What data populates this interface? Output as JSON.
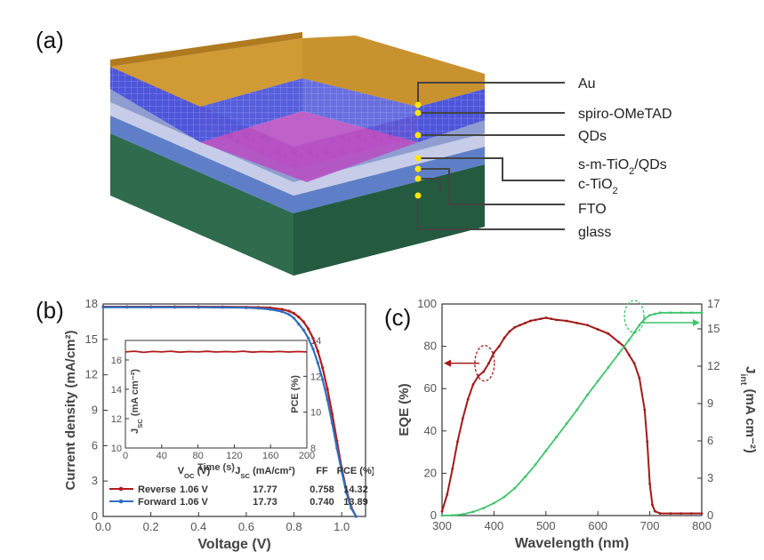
{
  "panel_a": {
    "label": "(a)",
    "layers": [
      "Au",
      "spiro-OMeTAD",
      "QDs",
      "s-m-TiO2/QDs",
      "c-TiO2",
      "FTO",
      "glass"
    ],
    "colors": {
      "au": "#c8922f",
      "spiro": "#4c5bd6",
      "qd": "#8a2e9c",
      "tio2": "#9ba8cf",
      "fto": "#5e7fc8",
      "glass": "#2f6b4d",
      "dot": "#ffe600"
    }
  },
  "panel_b": {
    "label": "(b)"
  },
  "panel_c": {
    "label": "(c)"
  },
  "chart_data": [
    {
      "id": "jv",
      "type": "line",
      "xlabel": "Voltage (V)",
      "ylabel": "Current density (mA/cm²)",
      "xlim": [
        0.0,
        1.1
      ],
      "ylim": [
        0,
        18
      ],
      "xticks": [
        0.0,
        0.2,
        0.4,
        0.6,
        0.8,
        1.0
      ],
      "xtick_labels": [
        "0.0",
        "0.2",
        "0.4",
        "0.6",
        "0.8",
        "1.0"
      ],
      "yticks": [
        0,
        3,
        6,
        9,
        12,
        15,
        18
      ],
      "series": [
        {
          "name": "Reverse",
          "color": "#b01c1c",
          "x": [
            0.0,
            0.1,
            0.2,
            0.3,
            0.4,
            0.5,
            0.6,
            0.65,
            0.7,
            0.75,
            0.78,
            0.8,
            0.82,
            0.84,
            0.86,
            0.88,
            0.9,
            0.92,
            0.94,
            0.96,
            0.98,
            1.0,
            1.02,
            1.04,
            1.06
          ],
          "y": [
            17.77,
            17.77,
            17.77,
            17.77,
            17.77,
            17.76,
            17.74,
            17.72,
            17.68,
            17.55,
            17.4,
            17.2,
            16.9,
            16.5,
            15.9,
            15.1,
            14.0,
            12.6,
            10.8,
            8.7,
            6.4,
            4.1,
            2.2,
            0.8,
            0
          ]
        },
        {
          "name": "Forward",
          "color": "#2e6fc0",
          "x": [
            0.0,
            0.1,
            0.2,
            0.3,
            0.4,
            0.5,
            0.6,
            0.65,
            0.7,
            0.75,
            0.78,
            0.8,
            0.82,
            0.84,
            0.86,
            0.88,
            0.9,
            0.92,
            0.94,
            0.96,
            0.98,
            1.0,
            1.02,
            1.04,
            1.06
          ],
          "y": [
            17.73,
            17.73,
            17.73,
            17.72,
            17.72,
            17.71,
            17.68,
            17.64,
            17.55,
            17.35,
            17.1,
            16.8,
            16.3,
            15.8,
            15.1,
            14.2,
            13.0,
            11.6,
            9.9,
            7.9,
            5.8,
            3.8,
            2.0,
            0.7,
            0
          ]
        }
      ],
      "table": {
        "headers": [
          "V",
          "J",
          "FF",
          "PCE (%)"
        ],
        "header_subs": [
          "OC",
          "SC"
        ],
        "header_units": [
          " (V)",
          " (mA/cm²)"
        ],
        "rows": [
          [
            "Reverse",
            "1.06 V",
            "17.77",
            "0.758",
            "14.32"
          ],
          [
            "Forward",
            "1.06 V",
            "17.73",
            "0.740",
            "13.89"
          ]
        ]
      }
    },
    {
      "id": "stability",
      "type": "line",
      "xlabel": "Time (s)",
      "ylabel_left": "J",
      "ylabel_left_sub": "SC",
      "ylabel_left_unit": " (mA cm⁻²)",
      "ylabel_right": "PCE (%)",
      "xlim": [
        0,
        200
      ],
      "ylim_left": [
        10,
        17.33
      ],
      "ylim_right": [
        8,
        14
      ],
      "xticks": [
        0,
        40,
        80,
        120,
        160,
        200
      ],
      "yticks_left": [
        10,
        12,
        14,
        16
      ],
      "yticks_right": [
        8,
        10,
        12,
        14
      ],
      "series": [
        {
          "name": "",
          "color": "#b01c1c",
          "x": [
            0,
            10,
            20,
            30,
            40,
            50,
            60,
            70,
            80,
            90,
            100,
            110,
            120,
            130,
            140,
            150,
            160,
            170,
            180,
            190,
            200
          ],
          "y": [
            16.55,
            16.6,
            16.52,
            16.58,
            16.55,
            16.6,
            16.53,
            16.57,
            16.55,
            16.59,
            16.54,
            16.57,
            16.55,
            16.6,
            16.53,
            16.57,
            16.55,
            16.58,
            16.54,
            16.57,
            16.55
          ]
        }
      ]
    },
    {
      "id": "eqe",
      "type": "line",
      "xlabel": "Wavelength (nm)",
      "ylabel_left": "EQE (%)",
      "ylabel_right": "J",
      "ylabel_right_sub": "int",
      "ylabel_right_unit": " (mA cm⁻²)",
      "xlim": [
        300,
        800
      ],
      "ylim_left": [
        0,
        100
      ],
      "ylim_right": [
        0,
        17
      ],
      "xticks": [
        300,
        400,
        500,
        600,
        700,
        800
      ],
      "yticks_left": [
        0,
        20,
        40,
        60,
        80,
        100
      ],
      "yticks_right": [
        0,
        3,
        6,
        9,
        12,
        15,
        17
      ],
      "series": [
        {
          "name": "EQE",
          "color": "#a11a1a",
          "x": [
            300,
            310,
            320,
            330,
            340,
            350,
            360,
            370,
            380,
            390,
            400,
            410,
            420,
            430,
            440,
            450,
            460,
            470,
            480,
            490,
            500,
            510,
            520,
            540,
            560,
            580,
            600,
            620,
            640,
            650,
            660,
            670,
            680,
            690,
            695,
            700,
            705,
            710,
            720,
            740,
            760,
            780,
            800
          ],
          "y": [
            2,
            10,
            22,
            35,
            46,
            55,
            62,
            66,
            68,
            72,
            77,
            80,
            84,
            87,
            89,
            90,
            91,
            92,
            92.5,
            93,
            93.5,
            93,
            92.5,
            92,
            91,
            90,
            88,
            86,
            82,
            80,
            76,
            72,
            65,
            50,
            35,
            15,
            5,
            2,
            1,
            1,
            1,
            1,
            1
          ]
        },
        {
          "name": "Jint",
          "color": "#3fc46a",
          "x": [
            300,
            320,
            340,
            360,
            380,
            400,
            420,
            440,
            460,
            480,
            500,
            520,
            540,
            560,
            580,
            600,
            620,
            640,
            660,
            670,
            680,
            690,
            700,
            710,
            720,
            740,
            760,
            780,
            800
          ],
          "y": [
            0,
            0.02,
            0.1,
            0.3,
            0.6,
            1.0,
            1.5,
            2.2,
            3.1,
            4.1,
            5.2,
            6.3,
            7.4,
            8.5,
            9.7,
            10.8,
            11.9,
            13.0,
            14.1,
            14.7,
            15.3,
            15.8,
            16.1,
            16.2,
            16.3,
            16.3,
            16.3,
            16.3,
            16.3
          ]
        }
      ]
    }
  ]
}
